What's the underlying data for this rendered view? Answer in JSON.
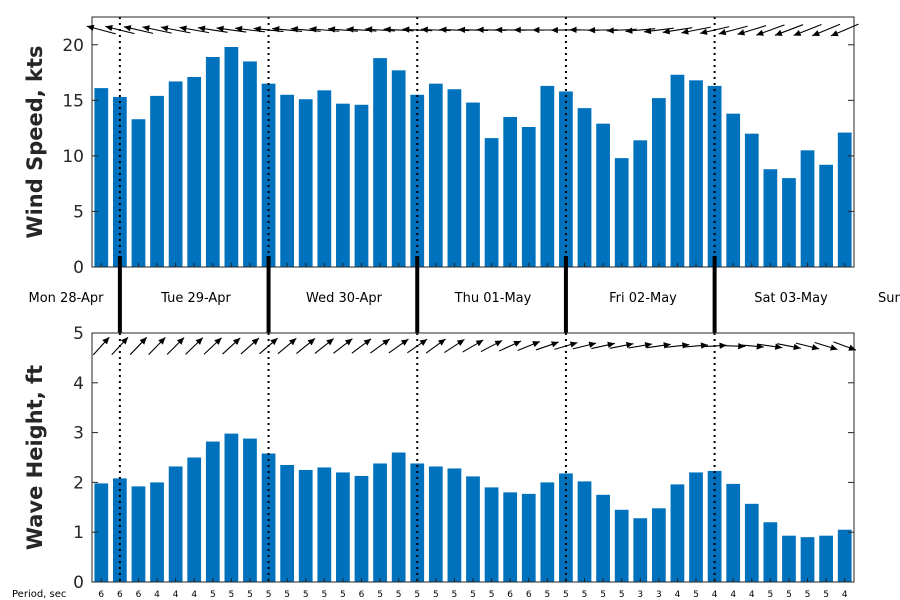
{
  "chart_data": [
    {
      "type": "bar",
      "ylabel": "Wind Speed, kts",
      "ylim": [
        0,
        22.5
      ],
      "yticks": [
        0,
        5,
        10,
        15,
        20
      ],
      "bar_color": "#0072BD",
      "values": [
        16.1,
        15.3,
        13.3,
        15.4,
        16.7,
        17.1,
        18.9,
        19.8,
        18.5,
        16.5,
        15.5,
        15.1,
        15.9,
        14.7,
        14.6,
        18.8,
        17.7,
        15.5,
        16.5,
        16.0,
        14.8,
        11.6,
        13.5,
        12.6,
        16.3,
        15.8,
        14.3,
        12.9,
        9.8,
        11.4,
        15.2,
        17.3,
        16.8,
        16.3,
        13.8,
        12.0,
        8.8,
        8.0,
        10.5,
        9.2,
        12.1
      ],
      "arrows": "wind direction arrows pointing to the west (west-southwest early, west-northwest later)"
    },
    {
      "type": "bar",
      "ylabel": "Wave Height, ft",
      "ylim": [
        0,
        5
      ],
      "yticks": [
        0,
        1,
        2,
        3,
        4,
        5
      ],
      "bar_color": "#0072BD",
      "values": [
        1.98,
        2.08,
        1.92,
        2.0,
        2.32,
        2.5,
        2.82,
        2.98,
        2.88,
        2.58,
        2.35,
        2.25,
        2.3,
        2.2,
        2.13,
        2.38,
        2.6,
        2.38,
        2.32,
        2.28,
        2.12,
        1.9,
        1.8,
        1.77,
        2.0,
        2.18,
        2.02,
        1.75,
        1.45,
        1.28,
        1.48,
        1.96,
        2.2,
        2.23,
        1.97,
        1.57,
        1.2,
        0.93,
        0.9,
        0.93,
        1.05
      ],
      "arrows": "wave direction arrows pointing northeast early, turning east then east-southeast"
    }
  ],
  "days": [
    "Mon 28-Apr",
    "Tue 29-Apr",
    "Wed 30-Apr",
    "Thu 01-May",
    "Fri 02-May",
    "Sat 03-May",
    "Sun"
  ],
  "period_title": "Period, sec",
  "periods": [
    "6",
    "6",
    "6",
    "4",
    "4",
    "4",
    "5",
    "5",
    "5",
    "5",
    "5",
    "5",
    "5",
    "5",
    "6",
    "5",
    "5",
    "5",
    "5",
    "5",
    "5",
    "5",
    "6",
    "6",
    "5",
    "5",
    "5",
    "5",
    "5",
    "3",
    "3",
    "4",
    "5",
    "4",
    "4",
    "4",
    "5",
    "5",
    "5",
    "5",
    "4"
  ]
}
